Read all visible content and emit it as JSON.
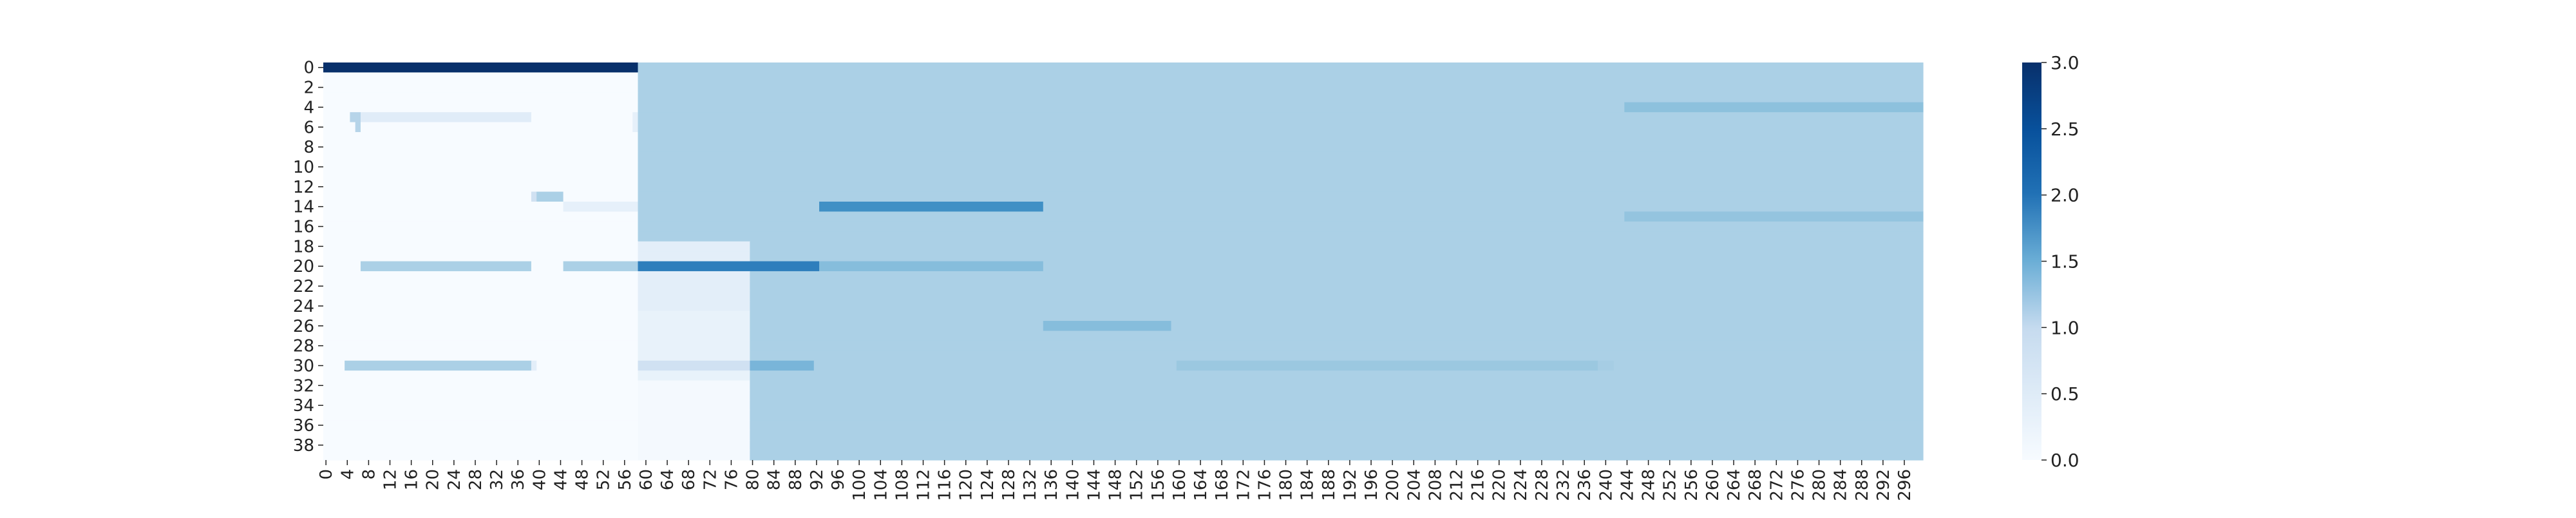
{
  "chart_data": {
    "type": "heatmap",
    "rows": 40,
    "cols": 300,
    "value_range": [
      0,
      3.0
    ],
    "colormap": "blues",
    "colors": {
      "low": "#f7fbff",
      "mid": "#a9cce3",
      "high": "#08306b"
    },
    "background_value": 1.0,
    "background_start_col": 59,
    "x_ticks": [
      "0",
      "4",
      "8",
      "12",
      "16",
      "20",
      "24",
      "28",
      "32",
      "36",
      "40",
      "44",
      "48",
      "52",
      "56",
      "60",
      "64",
      "68",
      "72",
      "76",
      "80",
      "84",
      "88",
      "92",
      "96",
      "100",
      "104",
      "108",
      "112",
      "116",
      "120",
      "124",
      "128",
      "132",
      "136",
      "140",
      "144",
      "148",
      "152",
      "156",
      "160",
      "164",
      "168",
      "172",
      "176",
      "180",
      "184",
      "188",
      "192",
      "196",
      "200",
      "204",
      "208",
      "212",
      "216",
      "220",
      "224",
      "228",
      "232",
      "236",
      "240",
      "244",
      "248",
      "252",
      "256",
      "260",
      "264",
      "268",
      "272",
      "276",
      "280",
      "284",
      "288",
      "292",
      "296"
    ],
    "y_ticks": [
      "0",
      "2",
      "4",
      "6",
      "8",
      "10",
      "12",
      "14",
      "16",
      "18",
      "20",
      "22",
      "24",
      "26",
      "28",
      "30",
      "32",
      "34",
      "36",
      "38"
    ],
    "colorbar_ticks": [
      "0.0",
      "0.5",
      "1.0",
      "1.5",
      "2.0",
      "2.5",
      "3.0"
    ],
    "blocks": [
      {
        "rows": [
          0,
          0
        ],
        "cols": [
          0,
          58
        ],
        "value": 3.0
      },
      {
        "rows": [
          18,
          39
        ],
        "cols": [
          0,
          58
        ],
        "value": 0.0
      },
      {
        "rows": [
          18,
          24
        ],
        "cols": [
          59,
          79
        ],
        "value": 0.3
      },
      {
        "rows": [
          25,
          31
        ],
        "cols": [
          59,
          79
        ],
        "value": 0.22
      },
      {
        "rows": [
          32,
          39
        ],
        "cols": [
          59,
          79
        ],
        "value": 0.05
      },
      {
        "rows": [
          5,
          5
        ],
        "cols": [
          5,
          6
        ],
        "value": 0.9
      },
      {
        "rows": [
          5,
          5
        ],
        "cols": [
          7,
          38
        ],
        "value": 0.35
      },
      {
        "rows": [
          6,
          6
        ],
        "cols": [
          6,
          6
        ],
        "value": 0.9
      },
      {
        "rows": [
          5,
          6
        ],
        "cols": [
          58,
          58
        ],
        "value": 0.25
      },
      {
        "rows": [
          13,
          13
        ],
        "cols": [
          39,
          39
        ],
        "value": 0.6
      },
      {
        "rows": [
          13,
          13
        ],
        "cols": [
          40,
          44
        ],
        "value": 1.0
      },
      {
        "rows": [
          14,
          14
        ],
        "cols": [
          45,
          58
        ],
        "value": 0.25
      },
      {
        "rows": [
          20,
          20
        ],
        "cols": [
          7,
          38
        ],
        "value": 1.0
      },
      {
        "rows": [
          20,
          20
        ],
        "cols": [
          45,
          58
        ],
        "value": 1.0
      },
      {
        "rows": [
          20,
          20
        ],
        "cols": [
          59,
          92
        ],
        "value": 2.1
      },
      {
        "rows": [
          20,
          20
        ],
        "cols": [
          93,
          134
        ],
        "value": 1.3
      },
      {
        "rows": [
          30,
          30
        ],
        "cols": [
          4,
          38
        ],
        "value": 1.0
      },
      {
        "rows": [
          30,
          30
        ],
        "cols": [
          39,
          39
        ],
        "value": 0.3
      },
      {
        "rows": [
          30,
          30
        ],
        "cols": [
          59,
          79
        ],
        "value": 0.6
      },
      {
        "rows": [
          30,
          30
        ],
        "cols": [
          80,
          91
        ],
        "value": 1.4
      },
      {
        "rows": [
          30,
          30
        ],
        "cols": [
          160,
          238
        ],
        "value": 1.15
      },
      {
        "rows": [
          30,
          30
        ],
        "cols": [
          239,
          241
        ],
        "value": 1.05
      },
      {
        "rows": [
          14,
          14
        ],
        "cols": [
          93,
          134
        ],
        "value": 1.9
      },
      {
        "rows": [
          26,
          26
        ],
        "cols": [
          135,
          158
        ],
        "value": 1.3
      },
      {
        "rows": [
          4,
          4
        ],
        "cols": [
          244,
          299
        ],
        "value": 1.25
      },
      {
        "rows": [
          15,
          15
        ],
        "cols": [
          244,
          299
        ],
        "value": 1.2
      }
    ]
  }
}
